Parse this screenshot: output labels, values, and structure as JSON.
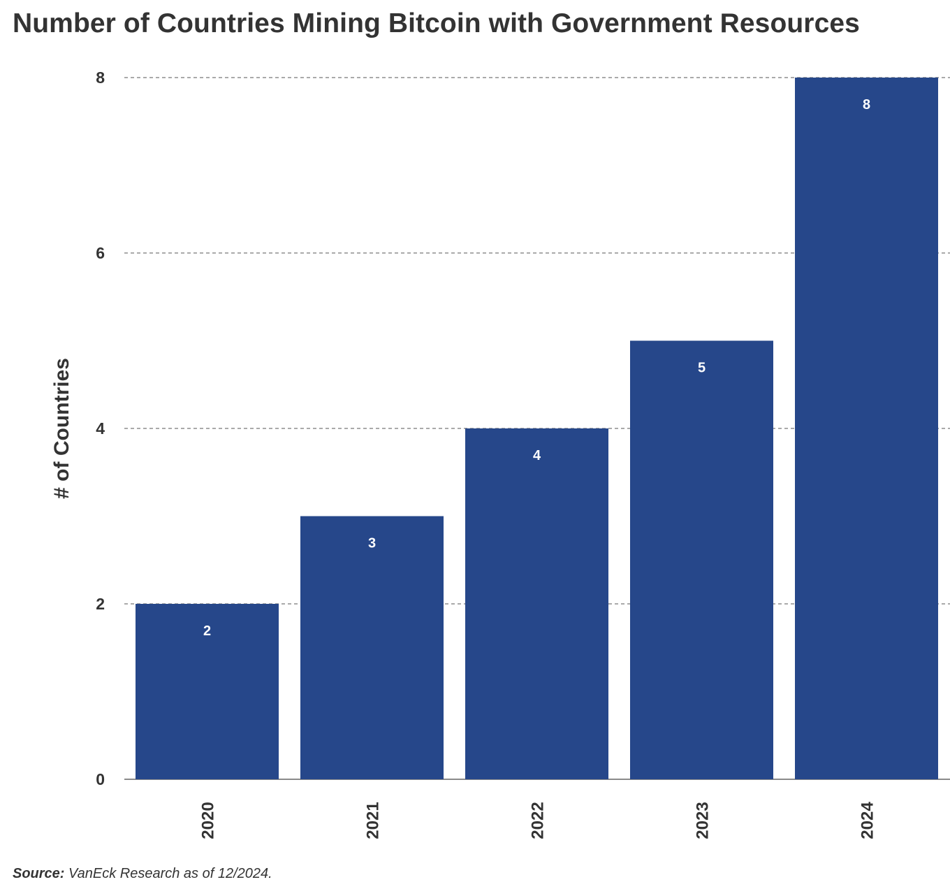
{
  "chart_data": {
    "type": "bar",
    "title": "Number of Countries Mining Bitcoin with Government Resources",
    "ylabel": "# of Countries",
    "xlabel": "",
    "categories": [
      "2020",
      "2021",
      "2022",
      "2023",
      "2024"
    ],
    "values": [
      2,
      3,
      4,
      5,
      8
    ],
    "data_labels": [
      "2",
      "3",
      "4",
      "5",
      "8"
    ],
    "ylim": [
      0,
      8
    ],
    "y_ticks": [
      {
        "value": 0,
        "label": "0"
      },
      {
        "value": 2,
        "label": "2"
      },
      {
        "value": 4,
        "label": "4"
      },
      {
        "value": 6,
        "label": "6"
      },
      {
        "value": 8,
        "label": "8"
      }
    ],
    "grid": "horizontal dashed",
    "legend": "none",
    "colors": {
      "bar": "#26478a",
      "text": "#333333",
      "bar_label": "#ffffff",
      "grid": "#555555"
    }
  },
  "source": {
    "label": "Source:",
    "text": "VanEck Research as of 12/2024."
  }
}
